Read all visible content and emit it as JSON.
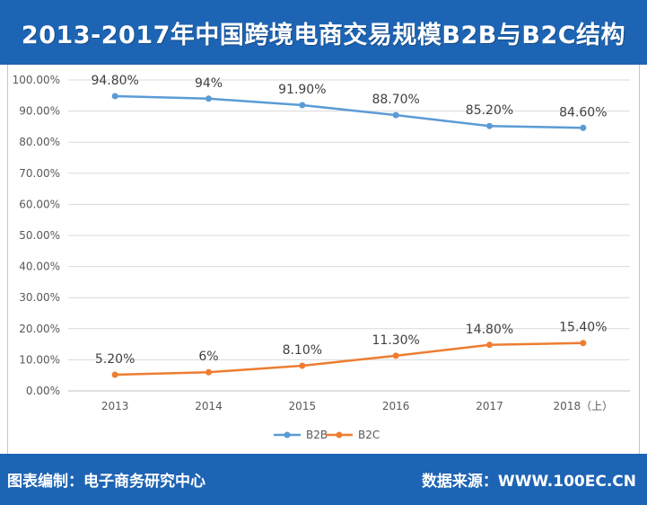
{
  "header": {
    "title": "2013-2017年中国跨境电商交易规模B2B与B2C结构"
  },
  "footer": {
    "left": "图表编制：电子商务研究中心",
    "right": "数据来源：WWW.100EC.CN"
  },
  "colors": {
    "header_bg": "#1d64b4",
    "b2b": "#5b9bd5",
    "b2c": "#ed7d31"
  },
  "chart_data": {
    "type": "line",
    "categories": [
      "2013",
      "2014",
      "2015",
      "2016",
      "2017",
      "2018（上）"
    ],
    "y_ticks": [
      "0.00%",
      "10.00%",
      "20.00%",
      "30.00%",
      "40.00%",
      "50.00%",
      "60.00%",
      "70.00%",
      "80.00%",
      "90.00%",
      "100.00%"
    ],
    "ylim": [
      0,
      100
    ],
    "grid": true,
    "legend_position": "bottom",
    "series": [
      {
        "name": "B2B",
        "values": [
          94.8,
          94,
          91.9,
          88.7,
          85.2,
          84.6
        ],
        "labels": [
          "94.80%",
          "94%",
          "91.90%",
          "88.70%",
          "85.20%",
          "84.60%"
        ],
        "color": "#5b9bd5"
      },
      {
        "name": "B2C",
        "values": [
          5.2,
          6,
          8.1,
          11.3,
          14.8,
          15.4
        ],
        "labels": [
          "5.20%",
          "6%",
          "8.10%",
          "11.30%",
          "14.80%",
          "15.40%"
        ],
        "color": "#ed7d31"
      }
    ]
  }
}
